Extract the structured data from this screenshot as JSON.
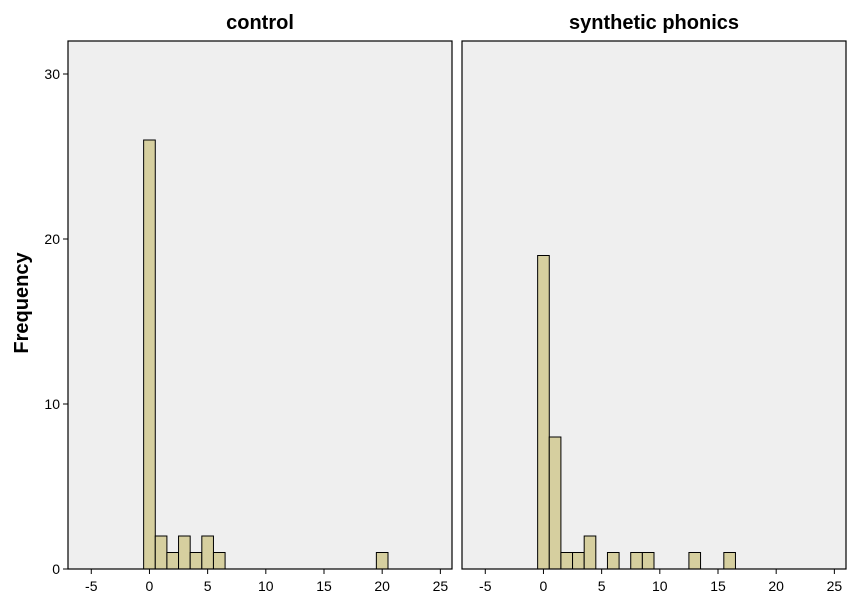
{
  "chart_data": {
    "type": "bar",
    "subtype": "faceted-histogram",
    "ylabel": "Frequency",
    "xlabel": "",
    "xlim": [
      -7,
      26
    ],
    "ylim": [
      0,
      32
    ],
    "x_ticks": [
      -5,
      0,
      5,
      10,
      15,
      20,
      25
    ],
    "y_ticks": [
      0,
      10,
      20,
      30
    ],
    "bin_width": 1,
    "grid": false,
    "colors": {
      "bar_fill": "#d6cf9f",
      "bar_stroke": "#000000",
      "panel_bg": "#efefef"
    },
    "panels": [
      {
        "title": "control",
        "bins": [
          {
            "x": 0,
            "count": 26
          },
          {
            "x": 1,
            "count": 2
          },
          {
            "x": 2,
            "count": 1
          },
          {
            "x": 3,
            "count": 2
          },
          {
            "x": 4,
            "count": 1
          },
          {
            "x": 5,
            "count": 2
          },
          {
            "x": 6,
            "count": 1
          },
          {
            "x": 20,
            "count": 1
          }
        ]
      },
      {
        "title": "synthetic phonics",
        "bins": [
          {
            "x": 0,
            "count": 19
          },
          {
            "x": 1,
            "count": 8
          },
          {
            "x": 2,
            "count": 1
          },
          {
            "x": 3,
            "count": 1
          },
          {
            "x": 4,
            "count": 2
          },
          {
            "x": 6,
            "count": 1
          },
          {
            "x": 8,
            "count": 1
          },
          {
            "x": 9,
            "count": 1
          },
          {
            "x": 13,
            "count": 1
          },
          {
            "x": 16,
            "count": 1
          }
        ]
      }
    ]
  }
}
